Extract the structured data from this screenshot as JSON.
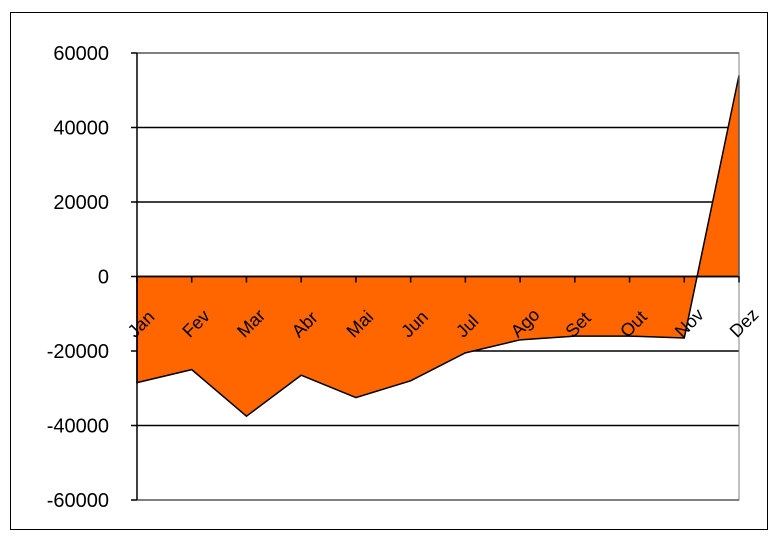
{
  "chart_data": {
    "type": "area",
    "title": "",
    "xlabel": "",
    "ylabel": "",
    "categories": [
      "Jan",
      "Fev",
      "Mar",
      "Abr",
      "Mai",
      "Jun",
      "Jul",
      "Ago",
      "Set",
      "Out",
      "Nov",
      "Dez"
    ],
    "series": [
      {
        "values": [
          -28500,
          -25000,
          -37500,
          -26500,
          -32500,
          -28000,
          -20500,
          -17000,
          -16000,
          -16000,
          -16500,
          54000
        ],
        "color": "#ff6600"
      }
    ],
    "ylim": [
      -60000,
      60000
    ],
    "yticks": [
      60000,
      40000,
      20000,
      0,
      -20000,
      -40000,
      -60000
    ],
    "ytick_labels": [
      "60000",
      "40000",
      "20000",
      "0",
      "-20000",
      "-40000",
      "-60000"
    ],
    "grid": true,
    "legend": "none"
  }
}
